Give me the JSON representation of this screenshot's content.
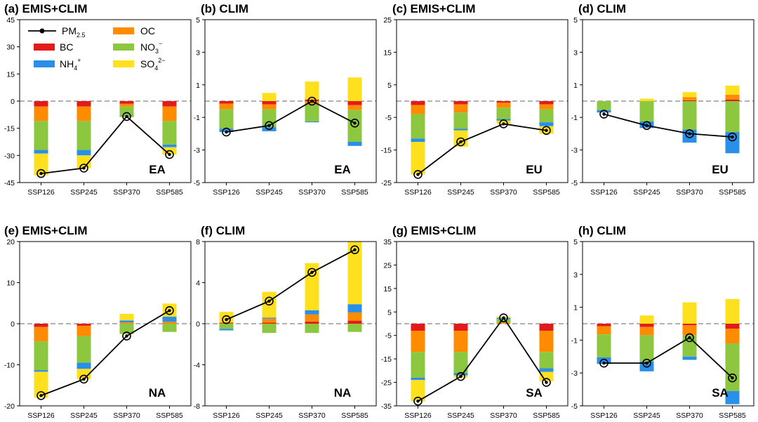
{
  "colors": {
    "BC": "#e31a1c",
    "OC": "#ff8c00",
    "NO3": "#8dc63f",
    "NH4": "#2a8fe6",
    "SO4": "#ffe01f",
    "line": "#000000",
    "zero": "#999999"
  },
  "legend": {
    "pm25": "PM",
    "pm25_sub": "2.5",
    "bc": "BC",
    "nh4": "NH",
    "nh4_sub": "4",
    "nh4_sup": "+",
    "oc": "OC",
    "no3": "NO",
    "no3_sub": "3",
    "no3_sup": "−",
    "so4": "SO",
    "so4_sub": "4",
    "so4_sup": "2−"
  },
  "chart_data": [
    {
      "type": "bar",
      "panel": "a",
      "title": "(a) EMIS+CLIM",
      "region": "EA",
      "categories": [
        "SSP126",
        "SSP245",
        "SSP370",
        "SSP585"
      ],
      "ylim": [
        -45,
        45
      ],
      "yticks": [
        "45",
        "30",
        "15",
        "0",
        "-15",
        "-30",
        "-45"
      ],
      "series": [
        {
          "name": "BC",
          "values": [
            -3,
            -3,
            -1.5,
            -3
          ]
        },
        {
          "name": "OC",
          "values": [
            -8,
            -8,
            -1.5,
            -8
          ]
        },
        {
          "name": "NO3",
          "values": [
            -16,
            -16,
            -5,
            -13
          ]
        },
        {
          "name": "NH4",
          "values": [
            -2,
            -3,
            -0.5,
            -1.5
          ]
        },
        {
          "name": "SO4",
          "values": [
            -12,
            -7,
            -0.5,
            -4
          ]
        }
      ],
      "pm25": [
        -40,
        -37,
        -8.5,
        -29.5
      ]
    },
    {
      "type": "bar",
      "panel": "b",
      "title": "(b) CLIM",
      "region": "EA",
      "categories": [
        "SSP126",
        "SSP245",
        "SSP370",
        "SSP585"
      ],
      "ylim": [
        -5,
        5
      ],
      "yticks": [
        "5",
        "3",
        "1",
        "-1",
        "-3",
        "-5"
      ],
      "series": [
        {
          "name": "BC",
          "values": [
            -0.15,
            -0.2,
            0.1,
            -0.25
          ]
        },
        {
          "name": "OC",
          "values": [
            -0.35,
            -0.3,
            -0.15,
            -0.3
          ]
        },
        {
          "name": "NO3",
          "values": [
            -1.2,
            -1.1,
            -1.1,
            -1.95
          ]
        },
        {
          "name": "NH4",
          "values": [
            -0.2,
            -0.25,
            -0.05,
            -0.25
          ]
        },
        {
          "name": "SO4",
          "values": [
            0,
            0.5,
            1.1,
            1.45
          ]
        }
      ],
      "pm25": [
        -1.9,
        -1.5,
        0,
        -1.35
      ]
    },
    {
      "type": "bar",
      "panel": "c",
      "title": "(c) EMIS+CLIM",
      "region": "EU",
      "categories": [
        "SSP126",
        "SSP245",
        "SSP370",
        "SSP585"
      ],
      "ylim": [
        -25,
        25
      ],
      "yticks": [
        "25",
        "15",
        "5",
        "-5",
        "-15",
        "-25"
      ],
      "series": [
        {
          "name": "BC",
          "values": [
            -1.2,
            -1,
            -0.5,
            -1
          ]
        },
        {
          "name": "OC",
          "values": [
            -2.8,
            -2.5,
            -1.5,
            -1.5
          ]
        },
        {
          "name": "NO3",
          "values": [
            -7.5,
            -5,
            -3.5,
            -4
          ]
        },
        {
          "name": "NH4",
          "values": [
            -1,
            -0.5,
            -0.5,
            -1.2
          ]
        },
        {
          "name": "SO4",
          "values": [
            -10,
            -5,
            -1,
            -2.3
          ]
        }
      ],
      "pm25": [
        -22.5,
        -12.5,
        -7,
        -9
      ]
    },
    {
      "type": "bar",
      "panel": "d",
      "title": "(d) CLIM",
      "region": "EU",
      "categories": [
        "SSP126",
        "SSP245",
        "SSP370",
        "SSP585"
      ],
      "ylim": [
        -5,
        5
      ],
      "yticks": [
        "5",
        "3",
        "1",
        "-1",
        "-3",
        "-5"
      ],
      "series": [
        {
          "name": "BC",
          "values": [
            0,
            0,
            0.05,
            0.1
          ]
        },
        {
          "name": "OC",
          "values": [
            0,
            0,
            0.2,
            0.3
          ]
        },
        {
          "name": "NO3",
          "values": [
            -0.55,
            -1.25,
            -1.75,
            -1.9
          ]
        },
        {
          "name": "NH4",
          "values": [
            -0.15,
            -0.4,
            -0.8,
            -1.3
          ]
        },
        {
          "name": "SO4",
          "values": [
            0,
            0.15,
            0.3,
            0.55
          ]
        }
      ],
      "pm25": [
        -0.8,
        -1.5,
        -2,
        -2.2
      ]
    },
    {
      "type": "bar",
      "panel": "e",
      "title": "(e) EMIS+CLIM",
      "region": "NA",
      "categories": [
        "SSP126",
        "SSP245",
        "SSP370",
        "SSP585"
      ],
      "ylim": [
        -20,
        20
      ],
      "yticks": [
        "20",
        "10",
        "0",
        "-10",
        "-20"
      ],
      "series": [
        {
          "name": "BC",
          "values": [
            -0.8,
            -0.5,
            0,
            0
          ]
        },
        {
          "name": "OC",
          "values": [
            -3.5,
            -2.5,
            0.3,
            0.5
          ]
        },
        {
          "name": "NO3",
          "values": [
            -7,
            -6.5,
            -2.5,
            -2
          ]
        },
        {
          "name": "NH4",
          "values": [
            -0.4,
            -1.5,
            0.5,
            1.2
          ]
        },
        {
          "name": "SO4",
          "values": [
            -6.3,
            -2.5,
            1.6,
            3.2
          ]
        }
      ],
      "pm25": [
        -17.5,
        -13.5,
        -3,
        3.2
      ]
    },
    {
      "type": "bar",
      "panel": "f",
      "title": "(f) CLIM",
      "region": "NA",
      "categories": [
        "SSP126",
        "SSP245",
        "SSP370",
        "SSP585"
      ],
      "ylim": [
        -8,
        8
      ],
      "yticks": [
        "8",
        "4",
        "0",
        "-4",
        "-8"
      ],
      "series": [
        {
          "name": "BC",
          "values": [
            0.05,
            0.1,
            0.2,
            0.3
          ]
        },
        {
          "name": "OC",
          "values": [
            0.1,
            0.4,
            0.7,
            0.8
          ]
        },
        {
          "name": "NO3",
          "values": [
            -0.5,
            -0.9,
            -0.9,
            -0.8
          ]
        },
        {
          "name": "NH4",
          "values": [
            -0.15,
            0.1,
            0.4,
            0.8
          ]
        },
        {
          "name": "SO4",
          "values": [
            1,
            2.5,
            4.6,
            6.1
          ]
        }
      ],
      "pm25": [
        0.4,
        2.2,
        5,
        7.2
      ]
    },
    {
      "type": "bar",
      "panel": "g",
      "title": "(g) EMIS+CLIM",
      "region": "SA",
      "categories": [
        "SSP126",
        "SSP245",
        "SSP370",
        "SSP585"
      ],
      "ylim": [
        -35,
        35
      ],
      "yticks": [
        "35",
        "25",
        "15",
        "5",
        "-5",
        "-15",
        "-25",
        "-35"
      ],
      "series": [
        {
          "name": "BC",
          "values": [
            -3,
            -3,
            0,
            -3
          ]
        },
        {
          "name": "OC",
          "values": [
            -9,
            -9,
            0.5,
            -9
          ]
        },
        {
          "name": "NO3",
          "values": [
            -11,
            -9,
            1.5,
            -7
          ]
        },
        {
          "name": "NH4",
          "values": [
            -1,
            -1,
            0.5,
            -1.5
          ]
        },
        {
          "name": "SO4",
          "values": [
            -9,
            -1,
            0.5,
            -4
          ]
        }
      ],
      "pm25": [
        -33,
        -22.5,
        2.5,
        -25
      ]
    },
    {
      "type": "bar",
      "panel": "h",
      "title": "(h) CLIM",
      "region": "SA",
      "categories": [
        "SSP126",
        "SSP245",
        "SSP370",
        "SSP585"
      ],
      "ylim": [
        -5,
        5
      ],
      "yticks": [
        "5",
        "3",
        "1",
        "-1",
        "-3",
        "-5"
      ],
      "series": [
        {
          "name": "BC",
          "values": [
            -0.15,
            -0.2,
            -0.1,
            -0.3
          ]
        },
        {
          "name": "OC",
          "values": [
            -0.5,
            -0.5,
            -0.6,
            -0.9
          ]
        },
        {
          "name": "NO3",
          "values": [
            -1.4,
            -1.6,
            -1.3,
            -2.9
          ]
        },
        {
          "name": "NH4",
          "values": [
            -0.4,
            -0.6,
            -0.2,
            -0.8
          ]
        },
        {
          "name": "SO4",
          "values": [
            0,
            0.5,
            1.3,
            1.5
          ]
        }
      ],
      "pm25": [
        -2.4,
        -2.4,
        -0.85,
        -3.3
      ]
    }
  ]
}
